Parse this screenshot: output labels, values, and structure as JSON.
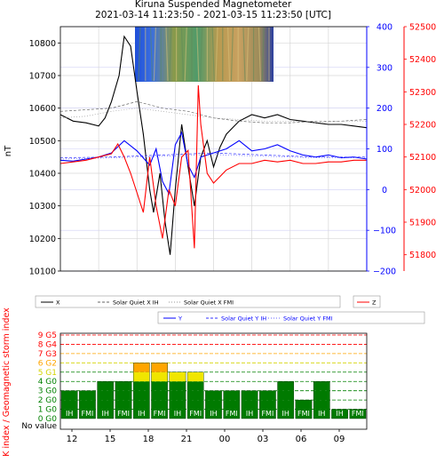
{
  "chart_data": [
    {
      "type": "line",
      "title_line1": "Kiruna Suspended Magnetometer",
      "title_line2": "2021-03-14 11:23:50 - 2021-03-15 11:23:50 [UTC]",
      "ylabel": "nT",
      "y_left": {
        "ylim": [
          10100,
          10850
        ],
        "ticks": [
          10100,
          10200,
          10300,
          10400,
          10500,
          10600,
          10700,
          10800
        ],
        "color": "#000000"
      },
      "y_blue": {
        "ylim": [
          -200,
          400
        ],
        "ticks": [
          -200,
          -100,
          0,
          100,
          200,
          300,
          400
        ],
        "color": "#0000ff"
      },
      "y_red": {
        "ylim": [
          51750,
          52500
        ],
        "ticks": [
          51800,
          51900,
          52000,
          52100,
          52200,
          52300,
          52400,
          52500
        ],
        "color": "#ff0000"
      },
      "hours": 24,
      "grid": true,
      "series": [
        {
          "name": "X",
          "axis": "left",
          "color": "#000000",
          "style": "solid",
          "points": [
            [
              0,
              10580
            ],
            [
              1,
              10560
            ],
            [
              2,
              10555
            ],
            [
              3,
              10545
            ],
            [
              3.5,
              10570
            ],
            [
              4,
              10620
            ],
            [
              4.6,
              10700
            ],
            [
              5,
              10820
            ],
            [
              5.5,
              10790
            ],
            [
              6,
              10650
            ],
            [
              6.5,
              10520
            ],
            [
              7,
              10350
            ],
            [
              7.3,
              10280
            ],
            [
              7.8,
              10400
            ],
            [
              8.2,
              10250
            ],
            [
              8.6,
              10150
            ],
            [
              9,
              10350
            ],
            [
              9.5,
              10550
            ],
            [
              10,
              10420
            ],
            [
              10.5,
              10300
            ],
            [
              11,
              10450
            ],
            [
              11.5,
              10500
            ],
            [
              12,
              10420
            ],
            [
              12.5,
              10480
            ],
            [
              13,
              10520
            ],
            [
              14,
              10560
            ],
            [
              15,
              10580
            ],
            [
              16,
              10570
            ],
            [
              17,
              10580
            ],
            [
              18,
              10565
            ],
            [
              19,
              10560
            ],
            [
              20,
              10555
            ],
            [
              21,
              10550
            ],
            [
              22,
              10550
            ],
            [
              23,
              10545
            ],
            [
              24,
              10540
            ]
          ]
        },
        {
          "name": "Solar Quiet X IH",
          "axis": "left",
          "color": "#666666",
          "style": "dashed",
          "points": [
            [
              0,
              10590
            ],
            [
              4,
              10600
            ],
            [
              6,
              10620
            ],
            [
              8,
              10600
            ],
            [
              10,
              10590
            ],
            [
              12,
              10570
            ],
            [
              14,
              10560
            ],
            [
              16,
              10555
            ],
            [
              18,
              10555
            ],
            [
              20,
              10560
            ],
            [
              22,
              10560
            ],
            [
              24,
              10565
            ]
          ]
        },
        {
          "name": "Solar Quiet X FMI",
          "axis": "left",
          "color": "#999999",
          "style": "dotted",
          "points": [
            [
              0,
              10570
            ],
            [
              2,
              10575
            ],
            [
              4,
              10590
            ],
            [
              6,
              10600
            ],
            [
              8,
              10590
            ],
            [
              10,
              10580
            ],
            [
              12,
              10570
            ],
            [
              14,
              10565
            ],
            [
              16,
              10560
            ],
            [
              18,
              10560
            ],
            [
              20,
              10555
            ],
            [
              22,
              10560
            ],
            [
              24,
              10560
            ]
          ]
        },
        {
          "name": "Y",
          "axis": "blue",
          "color": "#0000ff",
          "style": "solid",
          "points": [
            [
              0,
              72
            ],
            [
              1,
              70
            ],
            [
              2,
              75
            ],
            [
              3,
              80
            ],
            [
              4,
              90
            ],
            [
              5,
              120
            ],
            [
              6,
              95
            ],
            [
              7,
              60
            ],
            [
              7.5,
              100
            ],
            [
              8,
              20
            ],
            [
              8.5,
              -10
            ],
            [
              9,
              110
            ],
            [
              9.5,
              140
            ],
            [
              10,
              60
            ],
            [
              10.5,
              30
            ],
            [
              11,
              80
            ],
            [
              12,
              90
            ],
            [
              13,
              100
            ],
            [
              14,
              120
            ],
            [
              15,
              95
            ],
            [
              16,
              100
            ],
            [
              17,
              110
            ],
            [
              18,
              95
            ],
            [
              19,
              85
            ],
            [
              20,
              80
            ],
            [
              21,
              85
            ],
            [
              22,
              78
            ],
            [
              23,
              80
            ],
            [
              24,
              75
            ]
          ]
        },
        {
          "name": "Solar Quiet Y IH",
          "axis": "blue",
          "color": "#3333ff",
          "style": "dashed",
          "points": [
            [
              0,
              78
            ],
            [
              4,
              80
            ],
            [
              8,
              85
            ],
            [
              12,
              90
            ],
            [
              16,
              85
            ],
            [
              20,
              80
            ],
            [
              24,
              80
            ]
          ]
        },
        {
          "name": "Solar Quiet Y FMI",
          "axis": "blue",
          "color": "#6666ff",
          "style": "dotted",
          "points": [
            [
              0,
              75
            ],
            [
              4,
              78
            ],
            [
              8,
              82
            ],
            [
              12,
              86
            ],
            [
              16,
              82
            ],
            [
              20,
              78
            ],
            [
              24,
              78
            ]
          ]
        },
        {
          "name": "Z",
          "axis": "red",
          "color": "#ff0000",
          "style": "solid",
          "points": [
            [
              0,
              52080
            ],
            [
              1,
              52085
            ],
            [
              2,
              52090
            ],
            [
              3,
              52100
            ],
            [
              4,
              52110
            ],
            [
              4.5,
              52140
            ],
            [
              5,
              52100
            ],
            [
              5.5,
              52050
            ],
            [
              6,
              51990
            ],
            [
              6.5,
              51930
            ],
            [
              7,
              52100
            ],
            [
              7.5,
              51950
            ],
            [
              8,
              51850
            ],
            [
              8.5,
              52000
            ],
            [
              9,
              51950
            ],
            [
              9.5,
              52100
            ],
            [
              10,
              52120
            ],
            [
              10.5,
              51820
            ],
            [
              10.8,
              52320
            ],
            [
              11,
              52200
            ],
            [
              11.5,
              52050
            ],
            [
              12,
              52020
            ],
            [
              13,
              52060
            ],
            [
              14,
              52080
            ],
            [
              15,
              52080
            ],
            [
              16,
              52090
            ],
            [
              17,
              52085
            ],
            [
              18,
              52090
            ],
            [
              19,
              52080
            ],
            [
              20,
              52080
            ],
            [
              21,
              52085
            ],
            [
              22,
              52085
            ],
            [
              23,
              52090
            ],
            [
              24,
              52090
            ]
          ]
        }
      ],
      "legend_row1": [
        "X",
        "Solar Quiet X IH",
        "Solar Quiet X FMI"
      ],
      "legend_row2": [
        "Y",
        "Solar Quiet Y IH",
        "Solar Quiet Y FMI"
      ],
      "legend_z": "Z"
    },
    {
      "type": "bar",
      "ylabel": "K index / Geomagnetic storm index",
      "level_labels": [
        "No value",
        "0 G0",
        "1 G0",
        "2 G0",
        "3 G0",
        "4 G0",
        "5 G1",
        "6 G2",
        "7 G3",
        "8 G4",
        "9 G5"
      ],
      "level_colors": [
        "#000000",
        "#008000",
        "#008000",
        "#008000",
        "#008000",
        "#008000",
        "#d4d400",
        "#ffa500",
        "#ff0000",
        "#ff0000",
        "#ff0000"
      ],
      "x_ticks": [
        "12",
        "15",
        "18",
        "21",
        "00",
        "03",
        "06",
        "09"
      ],
      "bars": [
        {
          "value": 3,
          "source": "IH"
        },
        {
          "value": 3,
          "source": "FMI"
        },
        {
          "value": 4,
          "source": "IH"
        },
        {
          "value": 4,
          "source": "FMI"
        },
        {
          "value": 6,
          "source": "IH"
        },
        {
          "value": 6,
          "source": "FMI"
        },
        {
          "value": 5,
          "source": "IH"
        },
        {
          "value": 5,
          "source": "FMI"
        },
        {
          "value": 3,
          "source": "IH"
        },
        {
          "value": 3,
          "source": "FMI"
        },
        {
          "value": 3,
          "source": "IH"
        },
        {
          "value": 3,
          "source": "FMI"
        },
        {
          "value": 4,
          "source": "IH"
        },
        {
          "value": 2,
          "source": "FMI"
        },
        {
          "value": 4,
          "source": "IH"
        },
        {
          "value": 1,
          "source": "IH"
        },
        {
          "value": 1,
          "source": "FMI"
        }
      ]
    }
  ]
}
